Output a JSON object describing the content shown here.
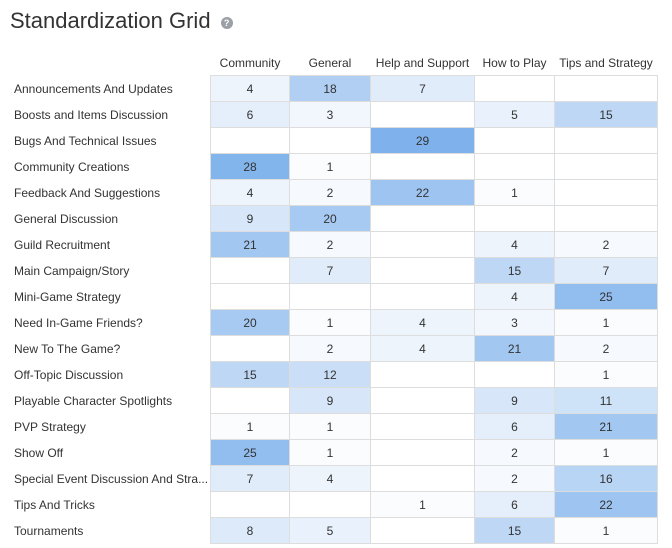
{
  "title": "Standardization Grid",
  "help_icon": "help-circle-icon",
  "chart_data": {
    "type": "heatmap",
    "title": "Standardization Grid",
    "color_low": "#ffffff",
    "color_high": "#7fb2ec",
    "columns": [
      "Community",
      "General",
      "Help and Support",
      "How to Play",
      "Tips and Strategy"
    ],
    "rows": [
      "Announcements And Updates",
      "Boosts and Items Discussion",
      "Bugs And Technical Issues",
      "Community Creations",
      "Feedback And Suggestions",
      "General Discussion",
      "Guild Recruitment",
      "Main Campaign/Story",
      "Mini-Game Strategy",
      "Need In-Game Friends?",
      "New To The Game?",
      "Off-Topic Discussion",
      "Playable Character Spotlights",
      "PVP Strategy",
      "Show Off",
      "Special Event Discussion And Strategy",
      "Tips And Tricks",
      "Tournaments"
    ],
    "row_labels_display": [
      "Announcements And Updates",
      "Boosts and Items Discussion",
      "Bugs And Technical Issues",
      "Community Creations",
      "Feedback And Suggestions",
      "General Discussion",
      "Guild Recruitment",
      "Main Campaign/Story",
      "Mini-Game Strategy",
      "Need In-Game Friends?",
      "New To The Game?",
      "Off-Topic Discussion",
      "Playable Character Spotlights",
      "PVP Strategy",
      "Show Off",
      "Special Event Discussion And Stra...",
      "Tips And Tricks",
      "Tournaments"
    ],
    "values": [
      [
        4,
        18,
        7,
        null,
        null
      ],
      [
        6,
        3,
        null,
        5,
        15
      ],
      [
        null,
        null,
        29,
        null,
        null
      ],
      [
        28,
        1,
        null,
        null,
        null
      ],
      [
        4,
        2,
        22,
        1,
        null
      ],
      [
        9,
        20,
        null,
        null,
        null
      ],
      [
        21,
        2,
        null,
        4,
        2
      ],
      [
        null,
        7,
        null,
        15,
        7
      ],
      [
        null,
        null,
        null,
        4,
        25
      ],
      [
        20,
        1,
        4,
        3,
        1
      ],
      [
        null,
        2,
        4,
        21,
        2
      ],
      [
        15,
        12,
        null,
        null,
        1
      ],
      [
        null,
        9,
        null,
        9,
        11
      ],
      [
        1,
        1,
        null,
        6,
        21
      ],
      [
        25,
        1,
        null,
        2,
        1
      ],
      [
        7,
        4,
        null,
        2,
        16
      ],
      [
        null,
        null,
        1,
        6,
        22
      ],
      [
        8,
        5,
        null,
        15,
        1
      ]
    ],
    "value_range": [
      0,
      29
    ]
  }
}
